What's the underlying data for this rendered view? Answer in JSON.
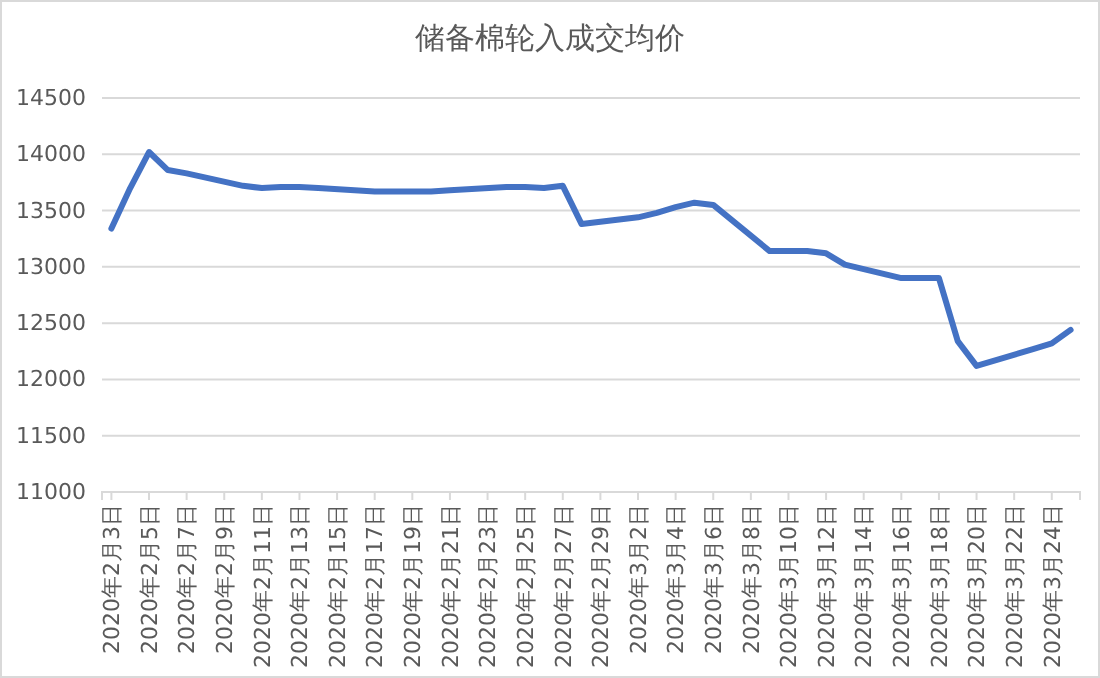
{
  "chart_data": {
    "type": "line",
    "title": "储备棉轮入成交均价",
    "x": [
      "2020-02-03",
      "2020-02-04",
      "2020-02-05",
      "2020-02-06",
      "2020-02-07",
      "2020-02-10",
      "2020-02-11",
      "2020-02-12",
      "2020-02-13",
      "2020-02-14",
      "2020-02-17",
      "2020-02-18",
      "2020-02-19",
      "2020-02-20",
      "2020-02-21",
      "2020-02-24",
      "2020-02-25",
      "2020-02-26",
      "2020-02-27",
      "2020-02-28",
      "2020-03-02",
      "2020-03-03",
      "2020-03-04",
      "2020-03-05",
      "2020-03-06",
      "2020-03-09",
      "2020-03-10",
      "2020-03-11",
      "2020-03-12",
      "2020-03-13",
      "2020-03-16",
      "2020-03-17",
      "2020-03-18",
      "2020-03-19",
      "2020-03-20",
      "2020-03-23",
      "2020-03-24",
      "2020-03-25"
    ],
    "series": [
      {
        "color": "#4472c4",
        "values": [
          13340,
          13700,
          14020,
          13860,
          13830,
          13720,
          13700,
          13710,
          13710,
          13700,
          13670,
          13670,
          13670,
          13670,
          13680,
          13710,
          13710,
          13700,
          13720,
          13380,
          13440,
          13480,
          13530,
          13570,
          13550,
          13140,
          13140,
          13140,
          13120,
          13020,
          12900,
          12900,
          12900,
          12340,
          12120,
          12270,
          12320,
          12440
        ]
      }
    ],
    "xlim": [
      "2020-02-02T12:00",
      "2020-03-25T12:00"
    ],
    "xticks": [
      {
        "value": "2020-02-03",
        "label": "2020年2月3日"
      },
      {
        "value": "2020-02-05",
        "label": "2020年2月5日"
      },
      {
        "value": "2020-02-07",
        "label": "2020年2月7日"
      },
      {
        "value": "2020-02-09",
        "label": "2020年2月9日"
      },
      {
        "value": "2020-02-11",
        "label": "2020年2月11日"
      },
      {
        "value": "2020-02-13",
        "label": "2020年2月13日"
      },
      {
        "value": "2020-02-15",
        "label": "2020年2月15日"
      },
      {
        "value": "2020-02-17",
        "label": "2020年2月17日"
      },
      {
        "value": "2020-02-19",
        "label": "2020年2月19日"
      },
      {
        "value": "2020-02-21",
        "label": "2020年2月21日"
      },
      {
        "value": "2020-02-23",
        "label": "2020年2月23日"
      },
      {
        "value": "2020-02-25",
        "label": "2020年2月25日"
      },
      {
        "value": "2020-02-27",
        "label": "2020年2月27日"
      },
      {
        "value": "2020-02-29",
        "label": "2020年2月29日"
      },
      {
        "value": "2020-03-02",
        "label": "2020年3月2日"
      },
      {
        "value": "2020-03-04",
        "label": "2020年3月4日"
      },
      {
        "value": "2020-03-06",
        "label": "2020年3月6日"
      },
      {
        "value": "2020-03-08",
        "label": "2020年3月8日"
      },
      {
        "value": "2020-03-10",
        "label": "2020年3月10日"
      },
      {
        "value": "2020-03-12",
        "label": "2020年3月12日"
      },
      {
        "value": "2020-03-14",
        "label": "2020年3月14日"
      },
      {
        "value": "2020-03-16",
        "label": "2020年3月16日"
      },
      {
        "value": "2020-03-18",
        "label": "2020年3月18日"
      },
      {
        "value": "2020-03-20",
        "label": "2020年3月20日"
      },
      {
        "value": "2020-03-22",
        "label": "2020年3月22日"
      },
      {
        "value": "2020-03-24",
        "label": "2020年3月24日"
      }
    ],
    "ylim": [
      11000,
      14500
    ],
    "yticks": [
      11000,
      11500,
      12000,
      12500,
      13000,
      13500,
      14000,
      14500
    ],
    "grid": "y",
    "marker": "none",
    "line_style": "solid"
  }
}
